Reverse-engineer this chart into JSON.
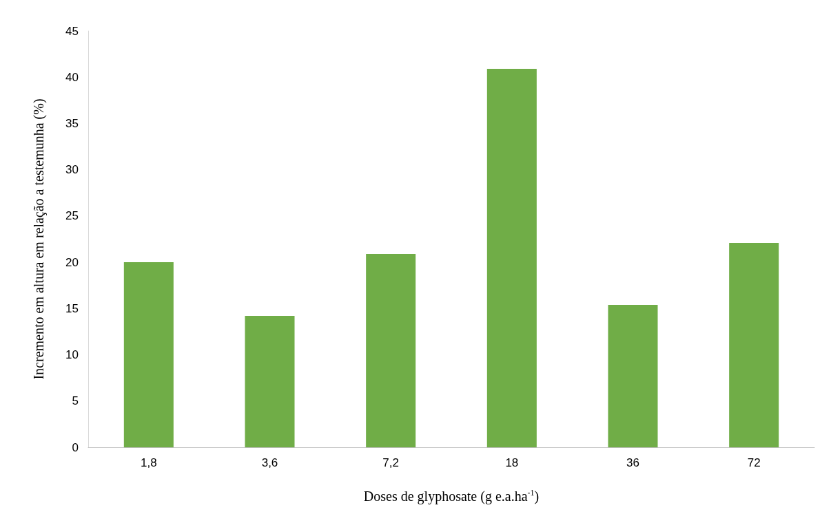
{
  "chart_data": {
    "type": "bar",
    "xlabel": "Doses de glyphosate (g e.a.ha$^{-1}$)",
    "ylabel": "Incremento em altura em relação a testemunha (%)",
    "categories": [
      "1,8",
      "3,6",
      "7,2",
      "18",
      "36",
      "72"
    ],
    "values": [
      20,
      14.2,
      20.9,
      40.9,
      15.4,
      22.1
    ],
    "color": "#70ad47",
    "ylim": [
      0,
      45
    ],
    "yticks": [
      0,
      5,
      10,
      15,
      20,
      25,
      30,
      35,
      40,
      45
    ],
    "grid": false
  }
}
